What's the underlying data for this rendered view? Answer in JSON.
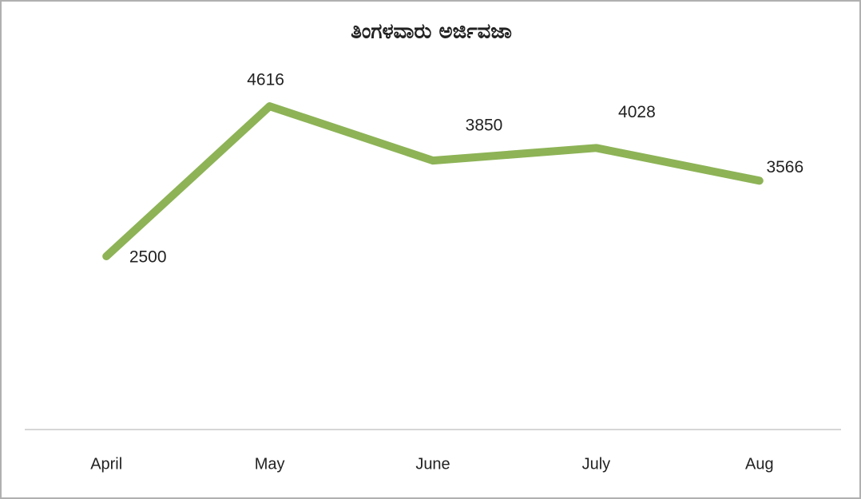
{
  "chart_data": {
    "type": "line",
    "title": "ತಿಂಗಳವಾರು ಅರ್ಜಿವಜಾ",
    "categories": [
      "April",
      "May",
      "June",
      "July",
      "Aug"
    ],
    "values": [
      2500,
      4616,
      3850,
      4028,
      3566
    ],
    "color": "#8db356",
    "ylim": [
      0,
      5000
    ]
  }
}
